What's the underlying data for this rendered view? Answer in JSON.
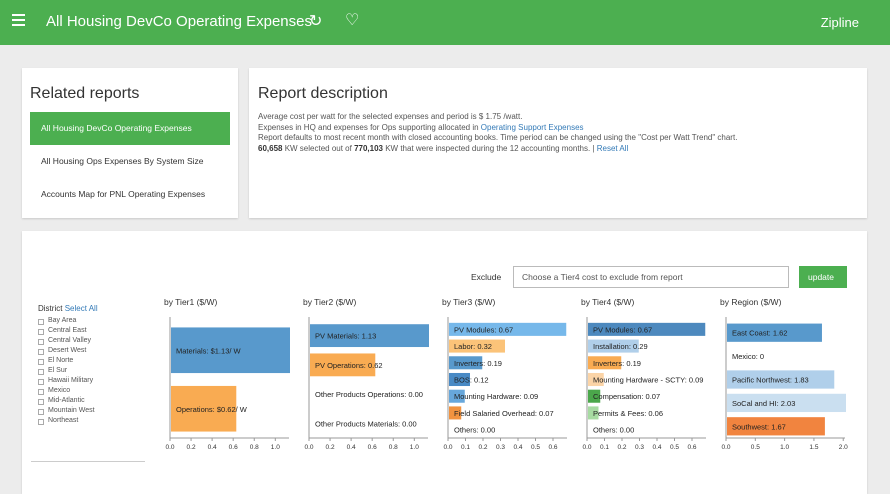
{
  "header": {
    "title": "All Housing DevCo Operating Expenses",
    "brand": "Zipline",
    "refresh_icon": "refresh-icon",
    "favorite_icon": "heart-icon",
    "color": "#4caf50"
  },
  "related": {
    "heading": "Related reports",
    "items": [
      "All Housing DevCo Operating Expenses",
      "All Housing Ops Expenses By System Size",
      "Accounts Map for PNL Operating Expenses"
    ]
  },
  "description": {
    "heading": "Report description",
    "line1_pre": "Average cost per watt for the selected expenses and period is $ 1.75 /watt.",
    "line2_pre": "Expenses in HQ and expenses for Ops supporting allocated in ",
    "line2_link": "Operating Support Expenses",
    "line3": "Report defaults to most recent month with closed accounting books. Time period can be changed using the \"Cost per Watt Trend\" chart.",
    "line4_b1": "60,658",
    "line4_m1": " KW selected out of ",
    "line4_b2": "770,103",
    "line4_m2": " KW that were inspected during the 12 accounting months. | ",
    "line4_link": "Reset All"
  },
  "filters": {
    "exclude_label": "Exclude",
    "exclude_placeholder": "Choose a Tier4 cost to exclude from report",
    "update_label": "update"
  },
  "district": {
    "title": "District",
    "select_all": "Select All",
    "items": [
      "Bay Area",
      "Central East",
      "Central Valley",
      "Desert West",
      "El Norte",
      "El Sur",
      "Hawaii Military",
      "Mexico",
      "Mid-Atlantic",
      "Mountain West",
      "Northeast"
    ]
  },
  "chart_data": [
    {
      "type": "bar",
      "orientation": "horizontal",
      "title": "by Tier1 ($/W)",
      "xlim": [
        0,
        1.13
      ],
      "xticks": [
        0.0,
        0.2,
        0.4,
        0.6,
        0.8,
        1.0
      ],
      "bars": [
        {
          "label": "Materials: $1.13/ W",
          "value": 1.13,
          "color": "#4a90c8"
        },
        {
          "label": "Operations: $0.62/ W",
          "value": 0.62,
          "color": "#f8a443"
        }
      ]
    },
    {
      "type": "bar",
      "orientation": "horizontal",
      "title": "by Tier2 ($/W)",
      "xlim": [
        0,
        1.13
      ],
      "xticks": [
        0.0,
        0.2,
        0.4,
        0.6,
        0.8,
        1.0
      ],
      "bars": [
        {
          "label": "PV Materials: 1.13",
          "value": 1.13,
          "color": "#4a90c8"
        },
        {
          "label": "PV Operations: 0.62",
          "value": 0.62,
          "color": "#f8a443"
        },
        {
          "label": "Other Products Operations: 0.00",
          "value": 0.0,
          "color": "#f8a443"
        },
        {
          "label": "Other Products Materials: 0.00",
          "value": 0.0,
          "color": "#4a90c8"
        }
      ]
    },
    {
      "type": "bar",
      "orientation": "horizontal",
      "title": "by Tier3 ($/W)",
      "xlim": [
        0,
        0.68
      ],
      "xticks": [
        0.0,
        0.1,
        0.2,
        0.3,
        0.4,
        0.5,
        0.6
      ],
      "bars": [
        {
          "label": "PV Modules: 0.67",
          "value": 0.67,
          "color": "#6ab2e8"
        },
        {
          "label": "Labor: 0.32",
          "value": 0.32,
          "color": "#fbbe6e"
        },
        {
          "label": "Inverters: 0.19",
          "value": 0.19,
          "color": "#4a90c8"
        },
        {
          "label": "BOS: 0.12",
          "value": 0.12,
          "color": "#3a80c0"
        },
        {
          "label": "Mounting Hardware: 0.09",
          "value": 0.09,
          "color": "#5aa0d8"
        },
        {
          "label": "Field Salaried Overhead: 0.07",
          "value": 0.07,
          "color": "#f08a30"
        },
        {
          "label": "Others: 0.00",
          "value": 0.0,
          "color": "#ffffff"
        }
      ]
    },
    {
      "type": "bar",
      "orientation": "horizontal",
      "title": "by Tier4 ($/W)",
      "xlim": [
        0,
        0.68
      ],
      "xticks": [
        0.0,
        0.1,
        0.2,
        0.3,
        0.4,
        0.5,
        0.6
      ],
      "bars": [
        {
          "label": "PV Modules: 0.67",
          "value": 0.67,
          "color": "#3e7fb8"
        },
        {
          "label": "Installation: 0.29",
          "value": 0.29,
          "color": "#a9cbe8"
        },
        {
          "label": "Inverters: 0.19",
          "value": 0.19,
          "color": "#f8a443"
        },
        {
          "label": "Mounting Hardware - SCTY: 0.09",
          "value": 0.09,
          "color": "#fbd0a0"
        },
        {
          "label": "Compensation: 0.07",
          "value": 0.07,
          "color": "#3ca03c"
        },
        {
          "label": "Permits & Fees: 0.06",
          "value": 0.06,
          "color": "#9fd89a"
        },
        {
          "label": "Others: 0.00",
          "value": 0.0,
          "color": "#ffffff"
        }
      ]
    },
    {
      "type": "bar",
      "orientation": "horizontal",
      "title": "by Region ($/W)",
      "xlim": [
        0,
        2.03
      ],
      "xticks": [
        0.0,
        0.5,
        1.0,
        1.5,
        2.0
      ],
      "bars": [
        {
          "label": "East Coast: 1.62",
          "value": 1.62,
          "color": "#4a90c8"
        },
        {
          "label": "Mexico: 0",
          "value": 0.0,
          "color": "#ffffff"
        },
        {
          "label": "Pacific Northwest: 1.83",
          "value": 1.83,
          "color": "#a9cbe8"
        },
        {
          "label": "SoCal and HI: 2.03",
          "value": 2.03,
          "color": "#c6dcef"
        },
        {
          "label": "Southwest: 1.67",
          "value": 1.67,
          "color": "#f07a2f"
        }
      ]
    }
  ]
}
